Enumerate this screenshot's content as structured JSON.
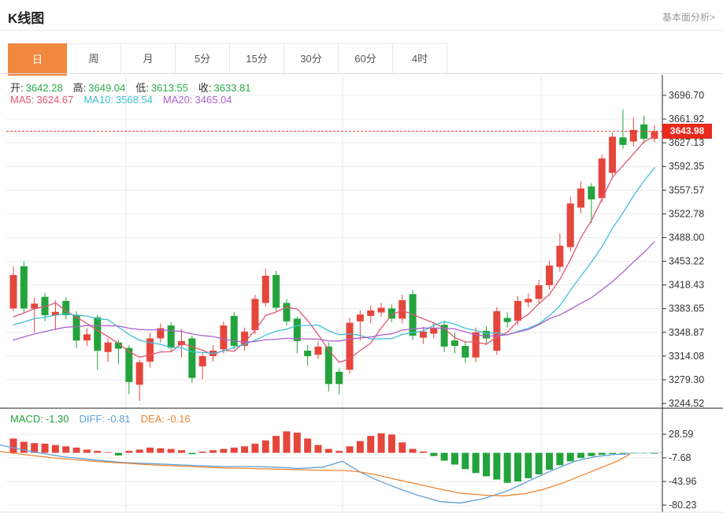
{
  "header": {
    "title": "K线图",
    "link": "基本面分析>"
  },
  "tabs": {
    "items": [
      "日",
      "周",
      "月",
      "5分",
      "15分",
      "30分",
      "60分",
      "4时"
    ],
    "active_index": 0
  },
  "info": {
    "ohlc": [
      {
        "label": "开:",
        "value": "3642.28"
      },
      {
        "label": "高:",
        "value": "3649.04"
      },
      {
        "label": "低:",
        "value": "3613.55"
      },
      {
        "label": "收:",
        "value": "3633.81"
      }
    ],
    "ma": [
      {
        "label": "MA5:",
        "value": "3624.67",
        "color": "#e25673"
      },
      {
        "label": "MA10:",
        "value": "3568.54",
        "color": "#3fc0d8"
      },
      {
        "label": "MA20:",
        "value": "3465.04",
        "color": "#ab62cc"
      }
    ],
    "macd": [
      {
        "label": "MACD:",
        "value": "-1.30",
        "color": "#22a33b"
      },
      {
        "label": "DIFF:",
        "value": "-0.81",
        "color": "#5f9fd8"
      },
      {
        "label": "DEA:",
        "value": "-0.16",
        "color": "#ef8532"
      }
    ]
  },
  "current_price": "3643.98",
  "chart_data": {
    "type": "candlestick+macd",
    "title": "K线图 日K",
    "price_ticks": [
      3696.7,
      3661.92,
      3627.13,
      3592.35,
      3557.57,
      3522.78,
      3488.0,
      3453.22,
      3418.43,
      3383.65,
      3348.87,
      3314.08,
      3279.3,
      3244.52
    ],
    "macd_ticks": [
      28.59,
      -7.68,
      -43.96,
      -80.23
    ],
    "current_price_value": 3643.98,
    "ohlc_display": {
      "open": 3642.28,
      "high": 3649.04,
      "low": 3613.55,
      "close": 3633.81
    },
    "ma_display": {
      "MA5": 3624.67,
      "MA10": 3568.54,
      "MA20": 3465.04
    },
    "macd_display": {
      "MACD": -1.3,
      "DIFF": -0.81,
      "DEA": -0.16
    },
    "candles": [
      [
        3384,
        3433,
        3380,
        3446
      ],
      [
        3446,
        3384,
        3377,
        3453
      ],
      [
        3384,
        3391,
        3349,
        3400
      ],
      [
        3401,
        3374,
        3365,
        3407
      ],
      [
        3374,
        3379,
        3352,
        3396
      ],
      [
        3395,
        3374,
        3368,
        3401
      ],
      [
        3374,
        3337,
        3326,
        3380
      ],
      [
        3337,
        3346,
        3329,
        3355
      ],
      [
        3371,
        3322,
        3294,
        3375
      ],
      [
        3320,
        3334,
        3305,
        3340
      ],
      [
        3334,
        3325,
        3302,
        3338
      ],
      [
        3326,
        3276,
        3258,
        3330
      ],
      [
        3272,
        3305,
        3248,
        3309
      ],
      [
        3306,
        3340,
        3297,
        3348
      ],
      [
        3340,
        3355,
        3334,
        3362
      ],
      [
        3359,
        3326,
        3320,
        3364
      ],
      [
        3330,
        3336,
        3312,
        3354
      ],
      [
        3340,
        3282,
        3275,
        3344
      ],
      [
        3299,
        3314,
        3280,
        3320
      ],
      [
        3314,
        3322,
        3306,
        3330
      ],
      [
        3324,
        3359,
        3318,
        3365
      ],
      [
        3373,
        3329,
        3324,
        3379
      ],
      [
        3329,
        3350,
        3322,
        3356
      ],
      [
        3352,
        3398,
        3346,
        3404
      ],
      [
        3392,
        3432,
        3387,
        3442
      ],
      [
        3433,
        3385,
        3380,
        3439
      ],
      [
        3392,
        3365,
        3359,
        3398
      ],
      [
        3369,
        3336,
        3318,
        3372
      ],
      [
        3322,
        3314,
        3300,
        3330
      ],
      [
        3316,
        3328,
        3310,
        3336
      ],
      [
        3328,
        3273,
        3262,
        3334
      ],
      [
        3291,
        3273,
        3258,
        3296
      ],
      [
        3294,
        3363,
        3288,
        3370
      ],
      [
        3365,
        3375,
        3337,
        3381
      ],
      [
        3373,
        3381,
        3362,
        3388
      ],
      [
        3378,
        3385,
        3372,
        3392
      ],
      [
        3384,
        3369,
        3364,
        3390
      ],
      [
        3369,
        3396,
        3362,
        3404
      ],
      [
        3405,
        3344,
        3338,
        3411
      ],
      [
        3341,
        3350,
        3332,
        3357
      ],
      [
        3347,
        3355,
        3340,
        3362
      ],
      [
        3360,
        3328,
        3320,
        3366
      ],
      [
        3337,
        3329,
        3318,
        3348
      ],
      [
        3329,
        3312,
        3304,
        3336
      ],
      [
        3312,
        3349,
        3305,
        3356
      ],
      [
        3351,
        3340,
        3330,
        3358
      ],
      [
        3322,
        3380,
        3316,
        3386
      ],
      [
        3370,
        3364,
        3356,
        3378
      ],
      [
        3366,
        3395,
        3360,
        3402
      ],
      [
        3393,
        3398,
        3386,
        3406
      ],
      [
        3398,
        3418,
        3392,
        3426
      ],
      [
        3418,
        3447,
        3412,
        3454
      ],
      [
        3445,
        3476,
        3438,
        3494
      ],
      [
        3474,
        3538,
        3468,
        3548
      ],
      [
        3532,
        3560,
        3524,
        3570
      ],
      [
        3563,
        3544,
        3509,
        3568
      ],
      [
        3546,
        3604,
        3540,
        3610
      ],
      [
        3583,
        3636,
        3576,
        3642
      ],
      [
        3635,
        3624,
        3618,
        3676
      ],
      [
        3629,
        3646,
        3622,
        3664
      ],
      [
        3654,
        3633,
        3626,
        3667
      ],
      [
        3633,
        3644,
        3628,
        3653
      ]
    ],
    "ma_seed_closes": [
      3290,
      3295,
      3300,
      3305,
      3310,
      3315,
      3320,
      3320,
      3325,
      3330,
      3335,
      3340,
      3345,
      3350,
      3350,
      3355,
      3355,
      3360,
      3360,
      3350
    ],
    "macd_hist": [
      22,
      17,
      15,
      14,
      12,
      10,
      8,
      5,
      3,
      1,
      -4,
      3,
      5,
      8,
      7,
      6,
      4,
      -2,
      2,
      4,
      6,
      8,
      10,
      14,
      19,
      26,
      33,
      31,
      22,
      12,
      6,
      3,
      10,
      18,
      26,
      30,
      28,
      16,
      6,
      2,
      -5,
      -12,
      -18,
      -25,
      -31,
      -36,
      -41,
      -46,
      -44,
      -39,
      -33,
      -26,
      -19,
      -13,
      -8,
      -5,
      -3,
      -1.5,
      -1,
      -0.8,
      -0.5,
      -1.3
    ],
    "diff_line": [
      [
        0,
        12
      ],
      [
        40,
        2
      ],
      [
        80,
        -6
      ],
      [
        120,
        -11
      ],
      [
        160,
        -15
      ],
      [
        200,
        -17
      ],
      [
        240,
        -19
      ],
      [
        280,
        -21
      ],
      [
        320,
        -21
      ],
      [
        350,
        -22
      ],
      [
        380,
        -24
      ],
      [
        410,
        -22
      ],
      [
        435,
        -13
      ],
      [
        455,
        -28
      ],
      [
        475,
        -40
      ],
      [
        500,
        -52
      ],
      [
        530,
        -65
      ],
      [
        560,
        -75
      ],
      [
        585,
        -77
      ],
      [
        615,
        -70
      ],
      [
        645,
        -58
      ],
      [
        675,
        -41
      ],
      [
        705,
        -25
      ],
      [
        730,
        -13
      ],
      [
        755,
        -6
      ],
      [
        780,
        -2.5
      ],
      [
        800,
        -1.8
      ]
    ],
    "dea_line": [
      [
        0,
        2
      ],
      [
        40,
        -4
      ],
      [
        80,
        -9
      ],
      [
        120,
        -13
      ],
      [
        160,
        -16
      ],
      [
        200,
        -19
      ],
      [
        240,
        -21
      ],
      [
        280,
        -23
      ],
      [
        320,
        -24
      ],
      [
        350,
        -25
      ],
      [
        380,
        -26
      ],
      [
        410,
        -27
      ],
      [
        435,
        -27
      ],
      [
        455,
        -29
      ],
      [
        475,
        -33
      ],
      [
        500,
        -40
      ],
      [
        530,
        -48
      ],
      [
        560,
        -56
      ],
      [
        585,
        -62
      ],
      [
        615,
        -65
      ],
      [
        640,
        -66
      ],
      [
        665,
        -63
      ],
      [
        690,
        -56
      ],
      [
        715,
        -46
      ],
      [
        740,
        -34
      ],
      [
        765,
        -22
      ],
      [
        785,
        -12
      ],
      [
        800,
        -2
      ]
    ],
    "colors": {
      "up": "#e5463c",
      "down": "#22a33b",
      "ma5": "#e25673",
      "ma10": "#3fc0d8",
      "ma20": "#ab62cc",
      "diff": "#5f9fd8",
      "dea": "#ef8532",
      "price_line": "#e23b3b",
      "badge_bg": "#e8291c",
      "grid": "#ececec",
      "vgrid": "#e4e4e4",
      "axis": "#4a4a4a",
      "tick_text": "#333333",
      "ohlc_value": "#27ae46",
      "tab_active_bg": "#f0883f",
      "dashed_tail": "#a8cdea"
    },
    "legend": [
      "MA5",
      "MA10",
      "MA20",
      "DIFF",
      "DEA",
      "MACD"
    ],
    "grid": true,
    "axis_position": "right"
  }
}
